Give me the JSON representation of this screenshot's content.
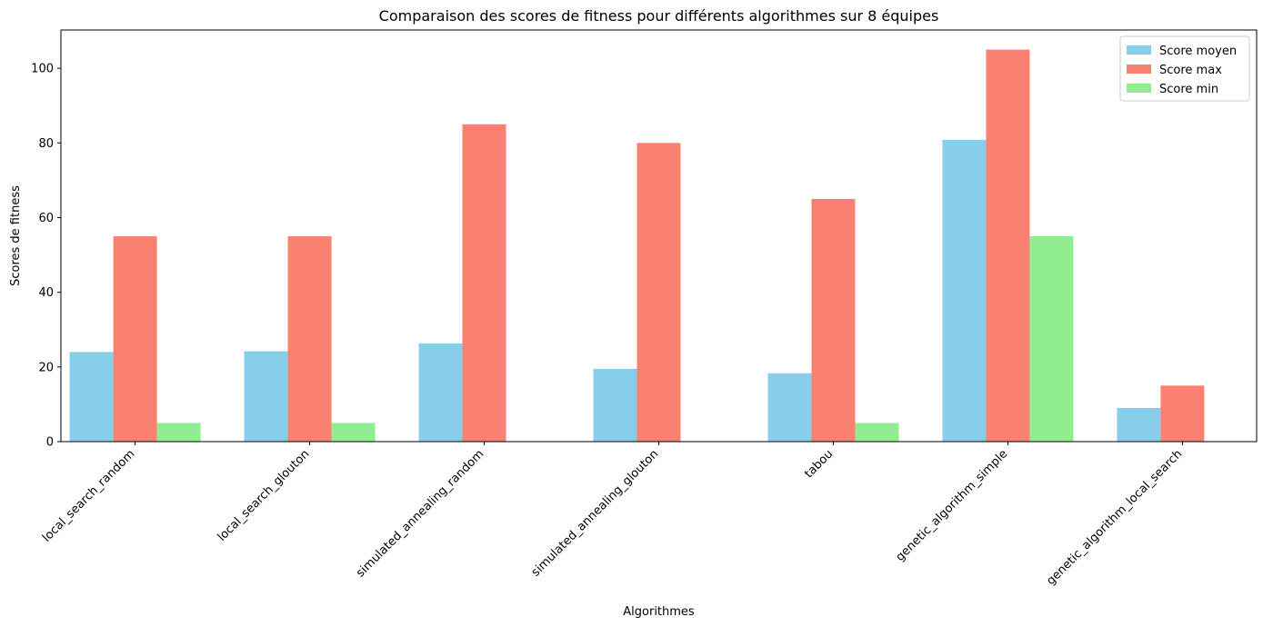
{
  "chart_data": {
    "type": "bar",
    "title": "Comparaison des scores de fitness pour différents algorithmes sur 8 équipes",
    "xlabel": "Algorithmes",
    "ylabel": "Scores de fitness",
    "categories": [
      "local_search_random",
      "local_search_glouton",
      "simulated_annealing_random",
      "simulated_annealing_glouton",
      "tabou",
      "genetic_algorithm_simple",
      "genetic_algorithm_local_search"
    ],
    "series": [
      {
        "name": "Score moyen",
        "color": "#87ceeb",
        "values": [
          24,
          24.2,
          26.3,
          19.5,
          18.3,
          80.8,
          9
        ]
      },
      {
        "name": "Score max",
        "color": "#fa8072",
        "values": [
          55,
          55,
          85,
          80,
          65,
          105,
          15
        ]
      },
      {
        "name": "Score min",
        "color": "#90ee90",
        "values": [
          5,
          5,
          0,
          0,
          5,
          55,
          0
        ]
      }
    ],
    "ylim": [
      0,
      110.25
    ],
    "yticks": [
      0,
      20,
      40,
      60,
      80,
      100
    ],
    "grid": false,
    "legend_position": "top-right",
    "xtick_rotation": 45
  }
}
